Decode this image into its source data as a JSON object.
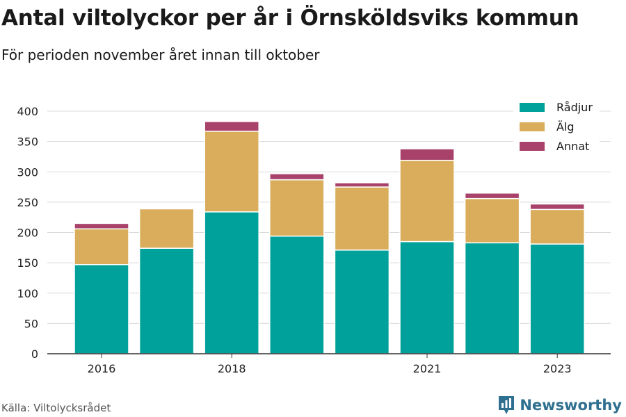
{
  "title": "Antal viltolyckor per år i Örnsköldsviks kommun",
  "subtitle": "För perioden november året innan till oktober",
  "source": "Källa: Viltolycksrådet",
  "brand": "Newsworthy",
  "colors": {
    "radjur": "#00a19a",
    "alg": "#d9ad5c",
    "annat": "#a8426a",
    "grid": "#d9d9d9",
    "axis": "#333333",
    "brand": "#2f6f8f"
  },
  "legend": [
    {
      "label": "Rådjur",
      "color": "#00a19a"
    },
    {
      "label": "Älg",
      "color": "#d9ad5c"
    },
    {
      "label": "Annat",
      "color": "#a8426a"
    }
  ],
  "chart_data": {
    "type": "bar",
    "stacked": true,
    "categories": [
      "2016",
      "2017",
      "2018",
      "2019",
      "2020",
      "2021",
      "2022",
      "2023"
    ],
    "x_tick_labels": [
      "2016",
      "",
      "2018",
      "",
      "",
      "2021",
      "",
      "2023"
    ],
    "series": [
      {
        "name": "Rådjur",
        "color": "#00a19a",
        "values": [
          147,
          174,
          234,
          194,
          171,
          185,
          183,
          181
        ]
      },
      {
        "name": "Älg",
        "color": "#d9ad5c",
        "values": [
          59,
          65,
          133,
          93,
          104,
          134,
          73,
          57
        ]
      },
      {
        "name": "Annat",
        "color": "#a8426a",
        "values": [
          9,
          0,
          16,
          10,
          7,
          19,
          9,
          9
        ]
      }
    ],
    "ylim": [
      0,
      400
    ],
    "yticks": [
      0,
      50,
      100,
      150,
      200,
      250,
      300,
      350,
      400
    ],
    "grid": true,
    "legend_position": "top-right"
  }
}
